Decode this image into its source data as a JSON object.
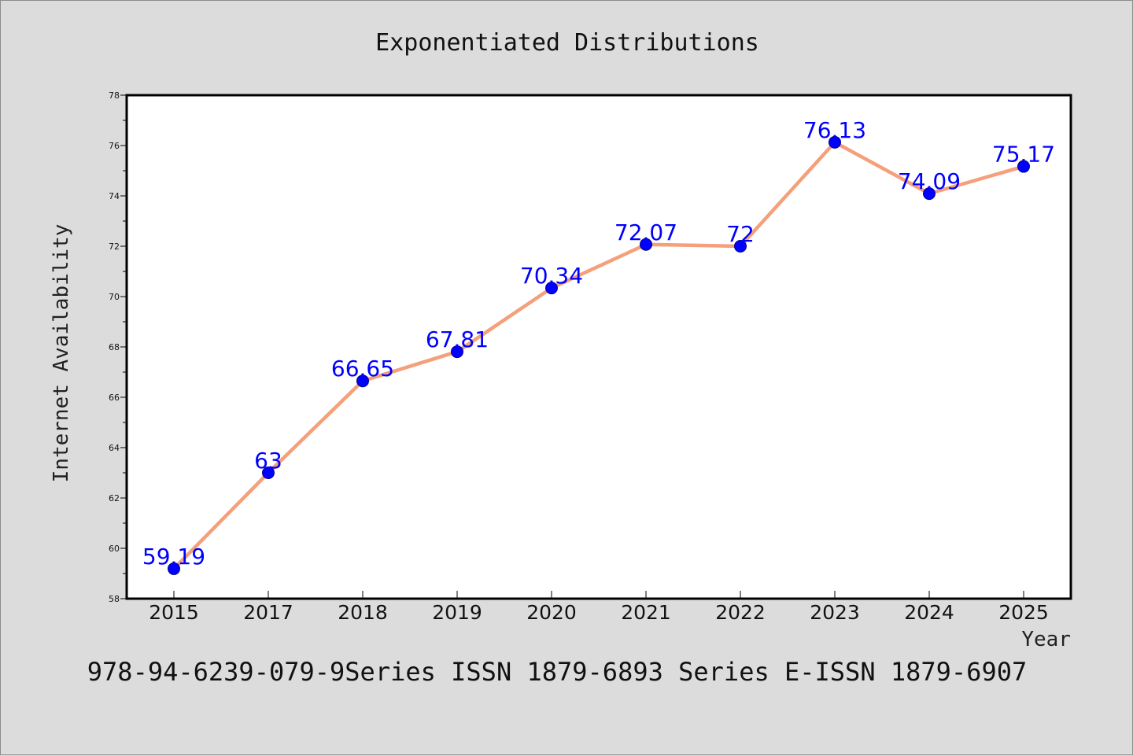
{
  "chart_data": {
    "type": "line",
    "title": "Exponentiated Distributions",
    "xlabel": "Year",
    "ylabel": "Internet Availability",
    "categories": [
      "2015",
      "2017",
      "2018",
      "2019",
      "2020",
      "2021",
      "2022",
      "2023",
      "2024",
      "2025"
    ],
    "series": [
      {
        "values": [
          59.19,
          63,
          66.65,
          67.81,
          70.34,
          72.07,
          72,
          76.13,
          74.09,
          75.17
        ],
        "labels": [
          "59.19",
          "63",
          "66.65",
          "67.81",
          "70.34",
          "72.07",
          "72",
          "76.13",
          "74.09",
          "75.17"
        ],
        "line_color": "#f4a07a",
        "marker_color": "#0000ff"
      }
    ],
    "ylim": [
      58,
      78
    ],
    "yticks": [
      "58",
      "60",
      "62",
      "64",
      "66",
      "68",
      "70",
      "72",
      "74",
      "76",
      "78"
    ],
    "grid": false,
    "legend": "none"
  },
  "footer": {
    "text": "978-94-6239-079-9Series ISSN 1879-6893 Series E-ISSN 1879-6907"
  }
}
